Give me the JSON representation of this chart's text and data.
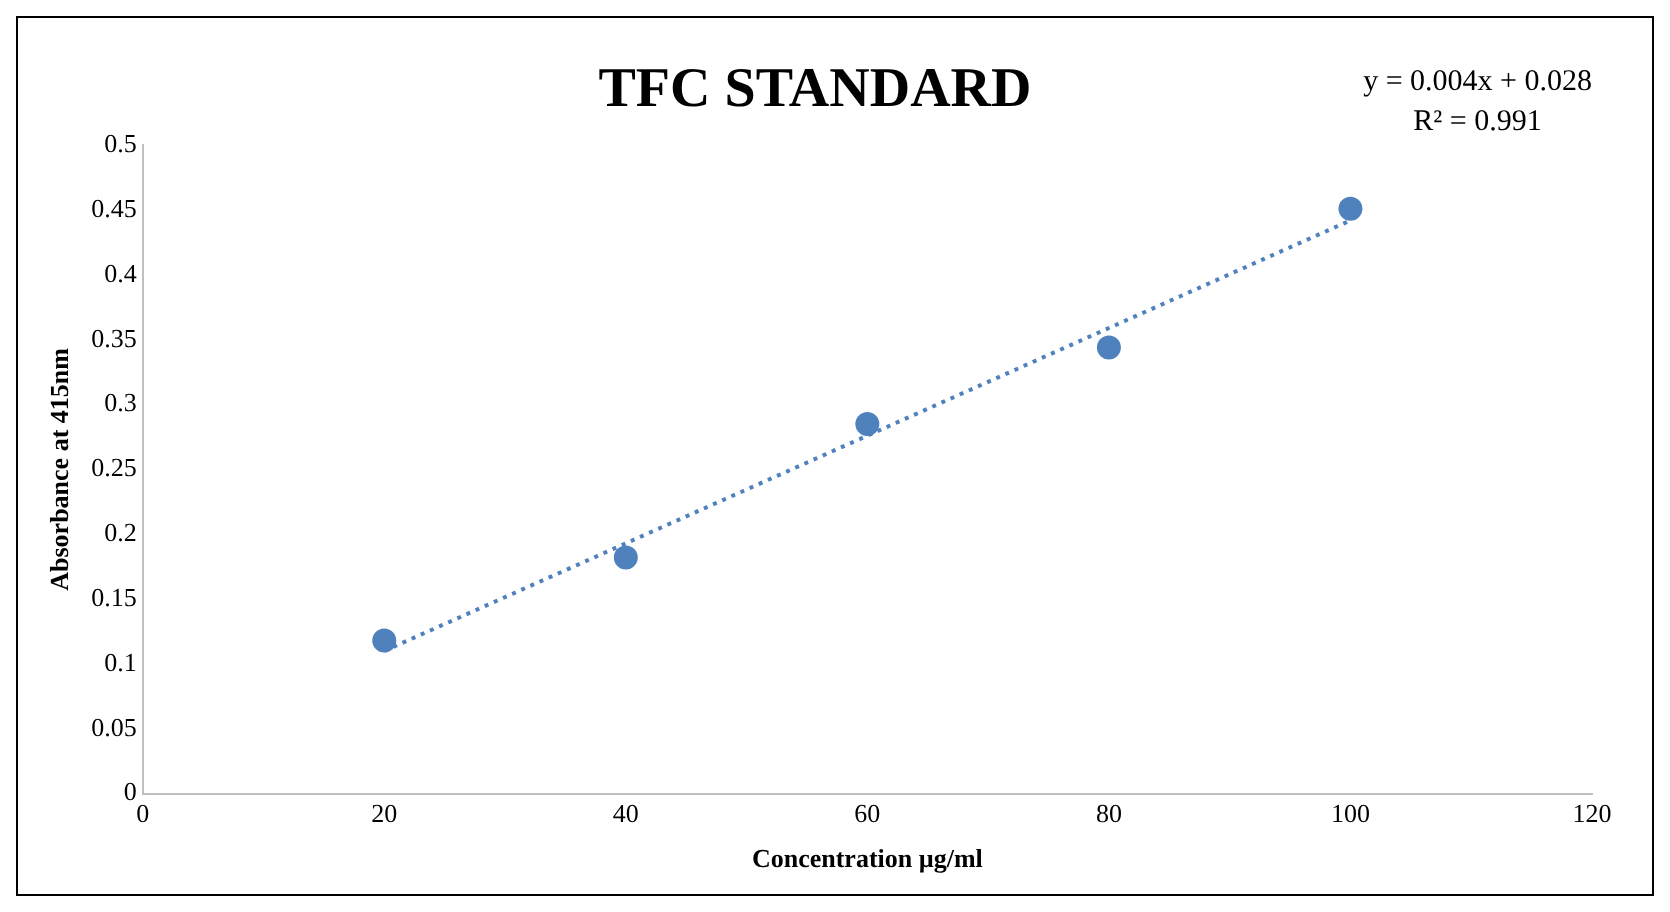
{
  "chart_data": {
    "type": "scatter",
    "title": "TFC STANDARD",
    "xlabel": "Concentration µg/ml",
    "ylabel": "Absorbance at 415nm",
    "annotations": [
      "y = 0.004x + 0.028",
      "R² = 0.991"
    ],
    "series": [
      {
        "color": "#4f81bd",
        "x": [
          20,
          40,
          60,
          80,
          100
        ],
        "values": [
          0.118,
          0.182,
          0.285,
          0.344,
          0.451
        ],
        "marker": "circle"
      },
      {
        "type": "line",
        "color": "#4f81bd",
        "x": [
          20,
          100
        ],
        "values": [
          0.11,
          0.442
        ],
        "marker": "none",
        "line_style": "dotted"
      }
    ],
    "xlim": [
      0,
      120
    ],
    "xticks": [
      0,
      20,
      40,
      60,
      80,
      100,
      120
    ],
    "ylim": [
      0,
      0.5
    ],
    "yticks": [
      0,
      0.05,
      0.1,
      0.15,
      0.2,
      0.25,
      0.3,
      0.35,
      0.4,
      0.45,
      0.5
    ],
    "grid": false,
    "legend": false
  }
}
